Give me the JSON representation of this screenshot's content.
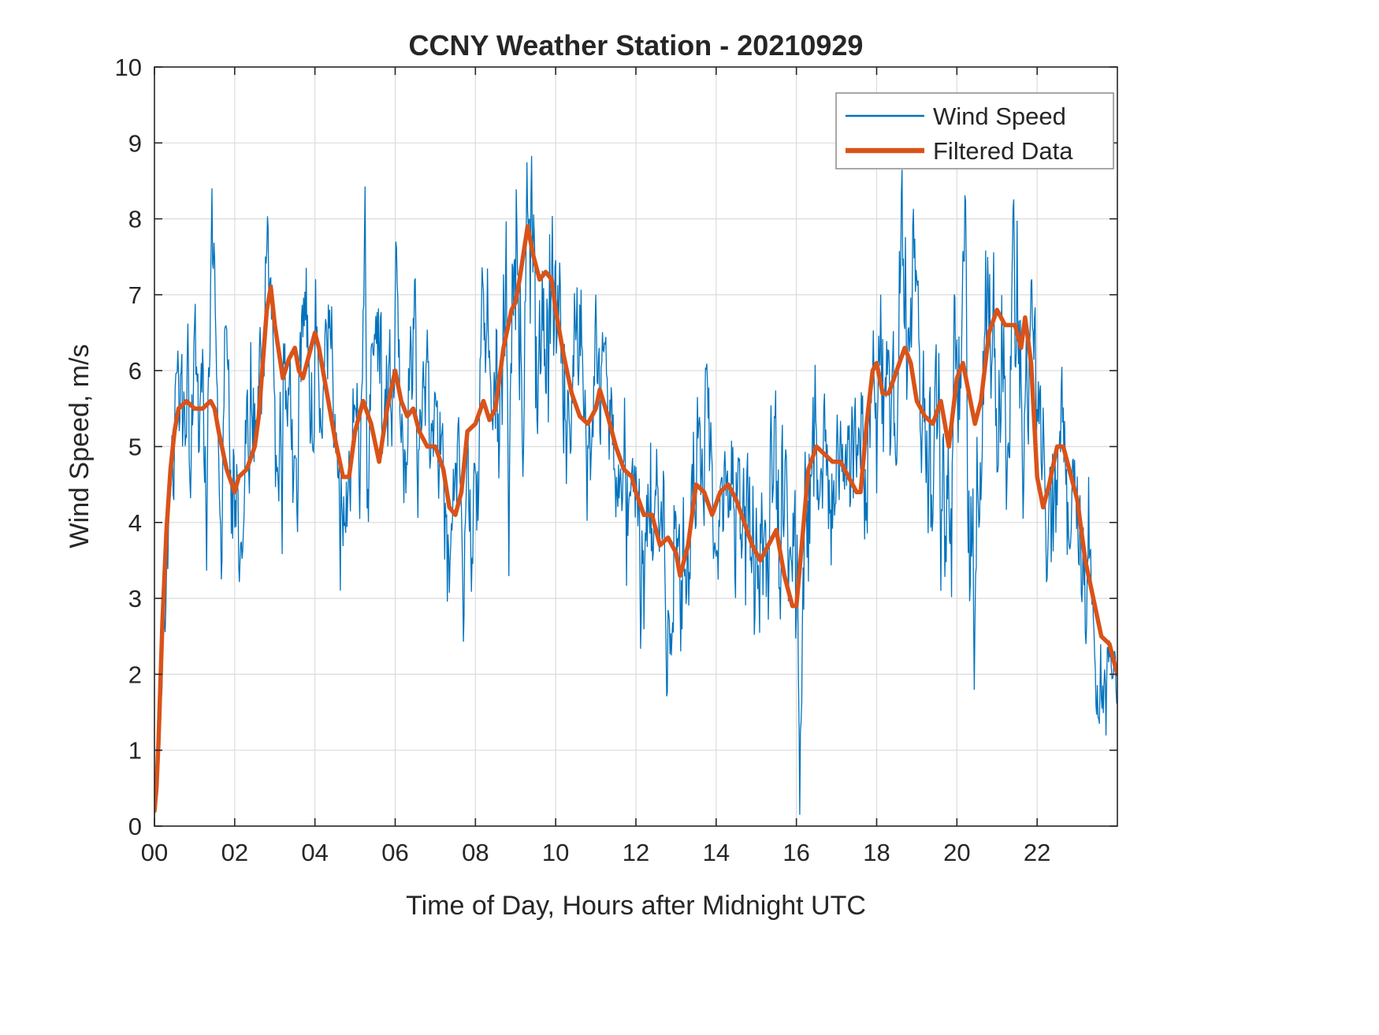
{
  "figure": {
    "background": "#ffffff",
    "axis_color": "#262626",
    "grid_color": "#DBDBDB"
  },
  "chart_data": {
    "type": "line",
    "title": "CCNY Weather Station - 20210929",
    "xlabel": "Time of Day, Hours after Midnight UTC",
    "ylabel": "Wind Speed, m/s",
    "xlim": [
      0,
      24
    ],
    "ylim": [
      0,
      10
    ],
    "grid": true,
    "x_ticks": {
      "values": [
        0,
        2,
        4,
        6,
        8,
        10,
        12,
        14,
        16,
        18,
        20,
        22
      ],
      "labels": [
        "00",
        "02",
        "04",
        "06",
        "08",
        "10",
        "12",
        "14",
        "16",
        "18",
        "20",
        "22"
      ]
    },
    "y_ticks": {
      "values": [
        0,
        1,
        2,
        3,
        4,
        5,
        6,
        7,
        8,
        9,
        10
      ],
      "labels": [
        "0",
        "1",
        "2",
        "3",
        "4",
        "5",
        "6",
        "7",
        "8",
        "9",
        "10"
      ]
    },
    "legend": {
      "position": "northeast",
      "entries": [
        "Wind Speed",
        "Filtered Data"
      ]
    },
    "series": [
      {
        "name": "Wind Speed",
        "color": "#0072BD",
        "line_width": 1.3,
        "derived": "filtered_plus_noise",
        "clip": [
          0.05,
          10
        ],
        "noise": {
          "seed": 20210929,
          "samples_per_hour": 60,
          "ar_coeff": 0.75,
          "innovation": 0.5,
          "gain": 1.8,
          "amplitude_envelope": [
            [
              0,
              0.25
            ],
            [
              0.4,
              0.7
            ],
            [
              0.7,
              1.1
            ],
            [
              1.5,
              1.15
            ],
            [
              2,
              1.1
            ],
            [
              2.5,
              1.2
            ],
            [
              3,
              1.35
            ],
            [
              3.5,
              1.3
            ],
            [
              4,
              1.25
            ],
            [
              4.5,
              1.15
            ],
            [
              5,
              1.15
            ],
            [
              5.5,
              1.3
            ],
            [
              6,
              1.25
            ],
            [
              6.5,
              1.15
            ],
            [
              7,
              1.1
            ],
            [
              7.5,
              1.15
            ],
            [
              8,
              1.3
            ],
            [
              8.5,
              1.55
            ],
            [
              9,
              1.75
            ],
            [
              9.5,
              1.6
            ],
            [
              10,
              1.45
            ],
            [
              10.5,
              1.25
            ],
            [
              11,
              1.1
            ],
            [
              11.5,
              1.05
            ],
            [
              12,
              1.1
            ],
            [
              12.5,
              1.15
            ],
            [
              13,
              1.25
            ],
            [
              13.5,
              1.15
            ],
            [
              14,
              1.15
            ],
            [
              14.5,
              1.2
            ],
            [
              15,
              1.35
            ],
            [
              15.5,
              1.45
            ],
            [
              16,
              1.5
            ],
            [
              16.5,
              1.2
            ],
            [
              17,
              1.15
            ],
            [
              17.5,
              1.3
            ],
            [
              18,
              1.45
            ],
            [
              18.5,
              1.35
            ],
            [
              19,
              1.45
            ],
            [
              19.5,
              1.4
            ],
            [
              20,
              1.5
            ],
            [
              20.5,
              1.55
            ],
            [
              21,
              1.65
            ],
            [
              21.5,
              1.55
            ],
            [
              22,
              1.3
            ],
            [
              22.5,
              1.15
            ],
            [
              23,
              1.05
            ],
            [
              23.5,
              0.95
            ],
            [
              24,
              0.85
            ]
          ]
        }
      },
      {
        "name": "Filtered Data",
        "color": "#D95319",
        "line_width": 5.5,
        "points": [
          [
            0,
            0.2
          ],
          [
            0.05,
            0.5
          ],
          [
            0.1,
            1.1
          ],
          [
            0.2,
            2.7
          ],
          [
            0.3,
            3.9
          ],
          [
            0.4,
            4.7
          ],
          [
            0.5,
            5.2
          ],
          [
            0.6,
            5.5
          ],
          [
            0.8,
            5.6
          ],
          [
            1.0,
            5.5
          ],
          [
            1.2,
            5.5
          ],
          [
            1.4,
            5.6
          ],
          [
            1.5,
            5.5
          ],
          [
            1.6,
            5.2
          ],
          [
            1.8,
            4.7
          ],
          [
            2.0,
            4.4
          ],
          [
            2.1,
            4.6
          ],
          [
            2.3,
            4.7
          ],
          [
            2.5,
            5.0
          ],
          [
            2.6,
            5.4
          ],
          [
            2.8,
            6.8
          ],
          [
            2.9,
            7.1
          ],
          [
            3.0,
            6.6
          ],
          [
            3.2,
            5.9
          ],
          [
            3.35,
            6.15
          ],
          [
            3.5,
            6.3
          ],
          [
            3.6,
            6.0
          ],
          [
            3.7,
            5.9
          ],
          [
            3.85,
            6.2
          ],
          [
            4.0,
            6.5
          ],
          [
            4.1,
            6.3
          ],
          [
            4.3,
            5.7
          ],
          [
            4.5,
            5.1
          ],
          [
            4.7,
            4.6
          ],
          [
            4.85,
            4.6
          ],
          [
            5.0,
            5.2
          ],
          [
            5.2,
            5.6
          ],
          [
            5.4,
            5.3
          ],
          [
            5.6,
            4.8
          ],
          [
            5.8,
            5.5
          ],
          [
            6.0,
            6.0
          ],
          [
            6.15,
            5.6
          ],
          [
            6.3,
            5.4
          ],
          [
            6.45,
            5.5
          ],
          [
            6.6,
            5.2
          ],
          [
            6.8,
            5.0
          ],
          [
            7.0,
            5.0
          ],
          [
            7.2,
            4.7
          ],
          [
            7.35,
            4.2
          ],
          [
            7.5,
            4.1
          ],
          [
            7.65,
            4.4
          ],
          [
            7.8,
            5.2
          ],
          [
            8.0,
            5.3
          ],
          [
            8.2,
            5.6
          ],
          [
            8.35,
            5.35
          ],
          [
            8.5,
            5.5
          ],
          [
            8.7,
            6.3
          ],
          [
            8.9,
            6.8
          ],
          [
            9.0,
            6.9
          ],
          [
            9.1,
            7.2
          ],
          [
            9.3,
            7.9
          ],
          [
            9.45,
            7.5
          ],
          [
            9.6,
            7.2
          ],
          [
            9.75,
            7.3
          ],
          [
            9.9,
            7.2
          ],
          [
            10.0,
            6.8
          ],
          [
            10.2,
            6.2
          ],
          [
            10.4,
            5.7
          ],
          [
            10.6,
            5.4
          ],
          [
            10.8,
            5.3
          ],
          [
            11.0,
            5.5
          ],
          [
            11.1,
            5.75
          ],
          [
            11.3,
            5.4
          ],
          [
            11.5,
            5.0
          ],
          [
            11.7,
            4.7
          ],
          [
            11.9,
            4.6
          ],
          [
            12.0,
            4.4
          ],
          [
            12.2,
            4.1
          ],
          [
            12.4,
            4.1
          ],
          [
            12.6,
            3.7
          ],
          [
            12.8,
            3.8
          ],
          [
            13.0,
            3.6
          ],
          [
            13.1,
            3.3
          ],
          [
            13.3,
            3.7
          ],
          [
            13.5,
            4.5
          ],
          [
            13.7,
            4.4
          ],
          [
            13.9,
            4.1
          ],
          [
            14.1,
            4.4
          ],
          [
            14.3,
            4.5
          ],
          [
            14.5,
            4.3
          ],
          [
            14.7,
            4.0
          ],
          [
            14.9,
            3.7
          ],
          [
            15.1,
            3.5
          ],
          [
            15.3,
            3.7
          ],
          [
            15.5,
            3.9
          ],
          [
            15.7,
            3.3
          ],
          [
            15.9,
            2.9
          ],
          [
            16.0,
            2.9
          ],
          [
            16.1,
            3.5
          ],
          [
            16.3,
            4.7
          ],
          [
            16.5,
            5.0
          ],
          [
            16.7,
            4.9
          ],
          [
            16.9,
            4.8
          ],
          [
            17.1,
            4.8
          ],
          [
            17.3,
            4.6
          ],
          [
            17.5,
            4.4
          ],
          [
            17.6,
            4.4
          ],
          [
            17.75,
            5.3
          ],
          [
            17.9,
            6.0
          ],
          [
            18.0,
            6.1
          ],
          [
            18.15,
            5.7
          ],
          [
            18.3,
            5.7
          ],
          [
            18.5,
            6.0
          ],
          [
            18.7,
            6.3
          ],
          [
            18.85,
            6.1
          ],
          [
            19.0,
            5.6
          ],
          [
            19.2,
            5.4
          ],
          [
            19.4,
            5.3
          ],
          [
            19.6,
            5.6
          ],
          [
            19.8,
            5.0
          ],
          [
            20.0,
            5.9
          ],
          [
            20.15,
            6.1
          ],
          [
            20.3,
            5.7
          ],
          [
            20.45,
            5.3
          ],
          [
            20.6,
            5.6
          ],
          [
            20.8,
            6.5
          ],
          [
            21.0,
            6.8
          ],
          [
            21.2,
            6.6
          ],
          [
            21.45,
            6.6
          ],
          [
            21.6,
            6.3
          ],
          [
            21.7,
            6.7
          ],
          [
            21.85,
            6.1
          ],
          [
            22.0,
            4.6
          ],
          [
            22.15,
            4.2
          ],
          [
            22.3,
            4.5
          ],
          [
            22.5,
            5.0
          ],
          [
            22.65,
            5.0
          ],
          [
            22.8,
            4.7
          ],
          [
            23.0,
            4.3
          ],
          [
            23.2,
            3.5
          ],
          [
            23.4,
            3.0
          ],
          [
            23.6,
            2.5
          ],
          [
            23.8,
            2.4
          ],
          [
            23.95,
            2.1
          ],
          [
            24,
            2.0
          ]
        ]
      }
    ]
  }
}
